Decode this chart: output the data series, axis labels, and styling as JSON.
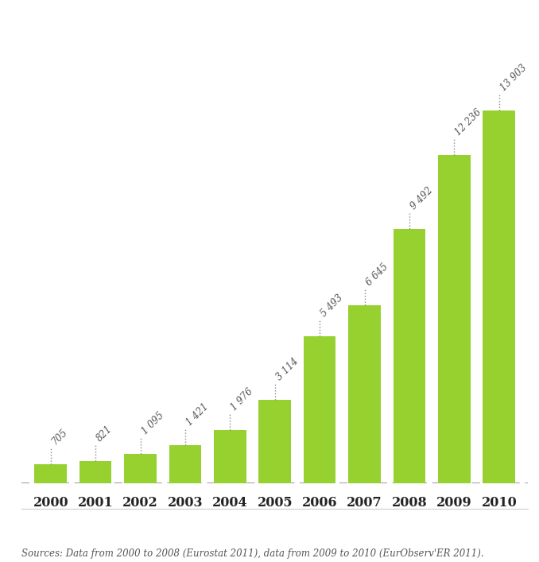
{
  "years": [
    "2000",
    "2001",
    "2002",
    "2003",
    "2004",
    "2005",
    "2006",
    "2007",
    "2008",
    "2009",
    "2010"
  ],
  "values": [
    705,
    821,
    1095,
    1421,
    1976,
    3114,
    5493,
    6645,
    9492,
    12236,
    13903
  ],
  "labels": [
    "705",
    "821",
    "1 095",
    "1 421",
    "1 976",
    "3 114",
    "5 493",
    "6 645",
    "9 492",
    "12 236",
    "13 903"
  ],
  "bar_color": "#96d130",
  "dashed_line_color": "#888888",
  "background_color": "#ffffff",
  "label_color": "#555555",
  "axis_label_color": "#222222",
  "source_text": "Sources: Data from 2000 to 2008 (Eurostat 2011), data from 2009 to 2010 (EurObserv'ER 2011).",
  "ylim": [
    0,
    15500
  ],
  "bar_width": 0.72,
  "label_fontsize": 8.5,
  "tick_fontsize": 11.5,
  "source_fontsize": 8.5
}
